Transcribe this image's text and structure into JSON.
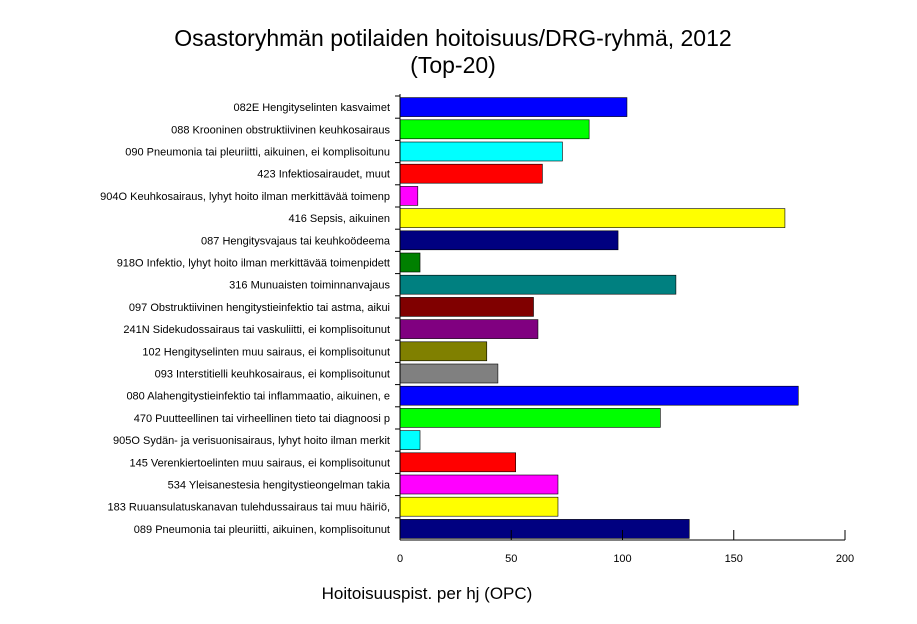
{
  "chart_data": {
    "type": "bar",
    "orientation": "horizontal",
    "title": "Osastoryhmän potilaiden hoitoisuus/DRG-ryhmä, 2012",
    "subtitle": "(Top-20)",
    "xlabel": "Hoitoisuuspist. per hj (OPC)",
    "ylabel": "",
    "xlim": [
      0,
      200
    ],
    "xticks": [
      "0",
      "50",
      "100",
      "150",
      "200"
    ],
    "grid": false,
    "categories": [
      {
        "code": "082E",
        "name": "Hengityselinten kasvaimet"
      },
      {
        "code": "088",
        "name": "Krooninen obstruktiivinen keuhkosairaus"
      },
      {
        "code": "090",
        "name": "Pneumonia tai pleuriitti, aikuinen, ei komplisoitunu"
      },
      {
        "code": "423",
        "name": "Infektiosairaudet, muut"
      },
      {
        "code": "904O",
        "name": "Keuhkosairaus, lyhyt hoito ilman merkittävää toimenp"
      },
      {
        "code": "416",
        "name": "Sepsis, aikuinen"
      },
      {
        "code": "087",
        "name": "Hengitysvajaus tai keuhkoödeema"
      },
      {
        "code": "918O",
        "name": "Infektio, lyhyt hoito ilman merkittävää toimenpidett"
      },
      {
        "code": "316",
        "name": "Munuaisten toiminnanvajaus"
      },
      {
        "code": "097",
        "name": "Obstruktiivinen hengitystieinfektio tai astma, aikui"
      },
      {
        "code": "241N",
        "name": "Sidekudossairaus tai vaskuliitti, ei komplisoitunut"
      },
      {
        "code": "102",
        "name": "Hengityselinten muu sairaus, ei komplisoitunut"
      },
      {
        "code": "093",
        "name": "Interstitielli keuhkosairaus, ei komplisoitunut"
      },
      {
        "code": "080",
        "name": "Alahengitystieinfektio tai inflammaatio, aikuinen, e"
      },
      {
        "code": "470",
        "name": "Puutteellinen tai virheellinen tieto tai diagnoosi p"
      },
      {
        "code": "905O",
        "name": "Sydän- ja verisuonisairaus, lyhyt hoito ilman merkit"
      },
      {
        "code": "145",
        "name": "Verenkiertoelinten muu sairaus, ei komplisoitunut"
      },
      {
        "code": "534",
        "name": "Yleisanestesia hengitystieongelman takia"
      },
      {
        "code": "183",
        "name": "Ruuansulatuskanavan tulehdussairaus tai  muu häiriö,"
      },
      {
        "code": "089",
        "name": "Pneumonia tai pleuriitti, aikuinen, komplisoitunut"
      }
    ],
    "values": [
      102,
      85,
      73,
      64,
      8,
      173,
      98,
      9,
      124,
      60,
      62,
      39,
      44,
      179,
      117,
      9,
      52,
      71,
      71,
      130
    ],
    "colors": [
      "#0000ff",
      "#00ff00",
      "#00ffff",
      "#ff0000",
      "#ff00ff",
      "#ffff00",
      "#000080",
      "#008000",
      "#008080",
      "#800000",
      "#800080",
      "#808000",
      "#808080",
      "#0000ff",
      "#00ff00",
      "#00ffff",
      "#ff0000",
      "#ff00ff",
      "#ffff00",
      "#000080"
    ]
  }
}
